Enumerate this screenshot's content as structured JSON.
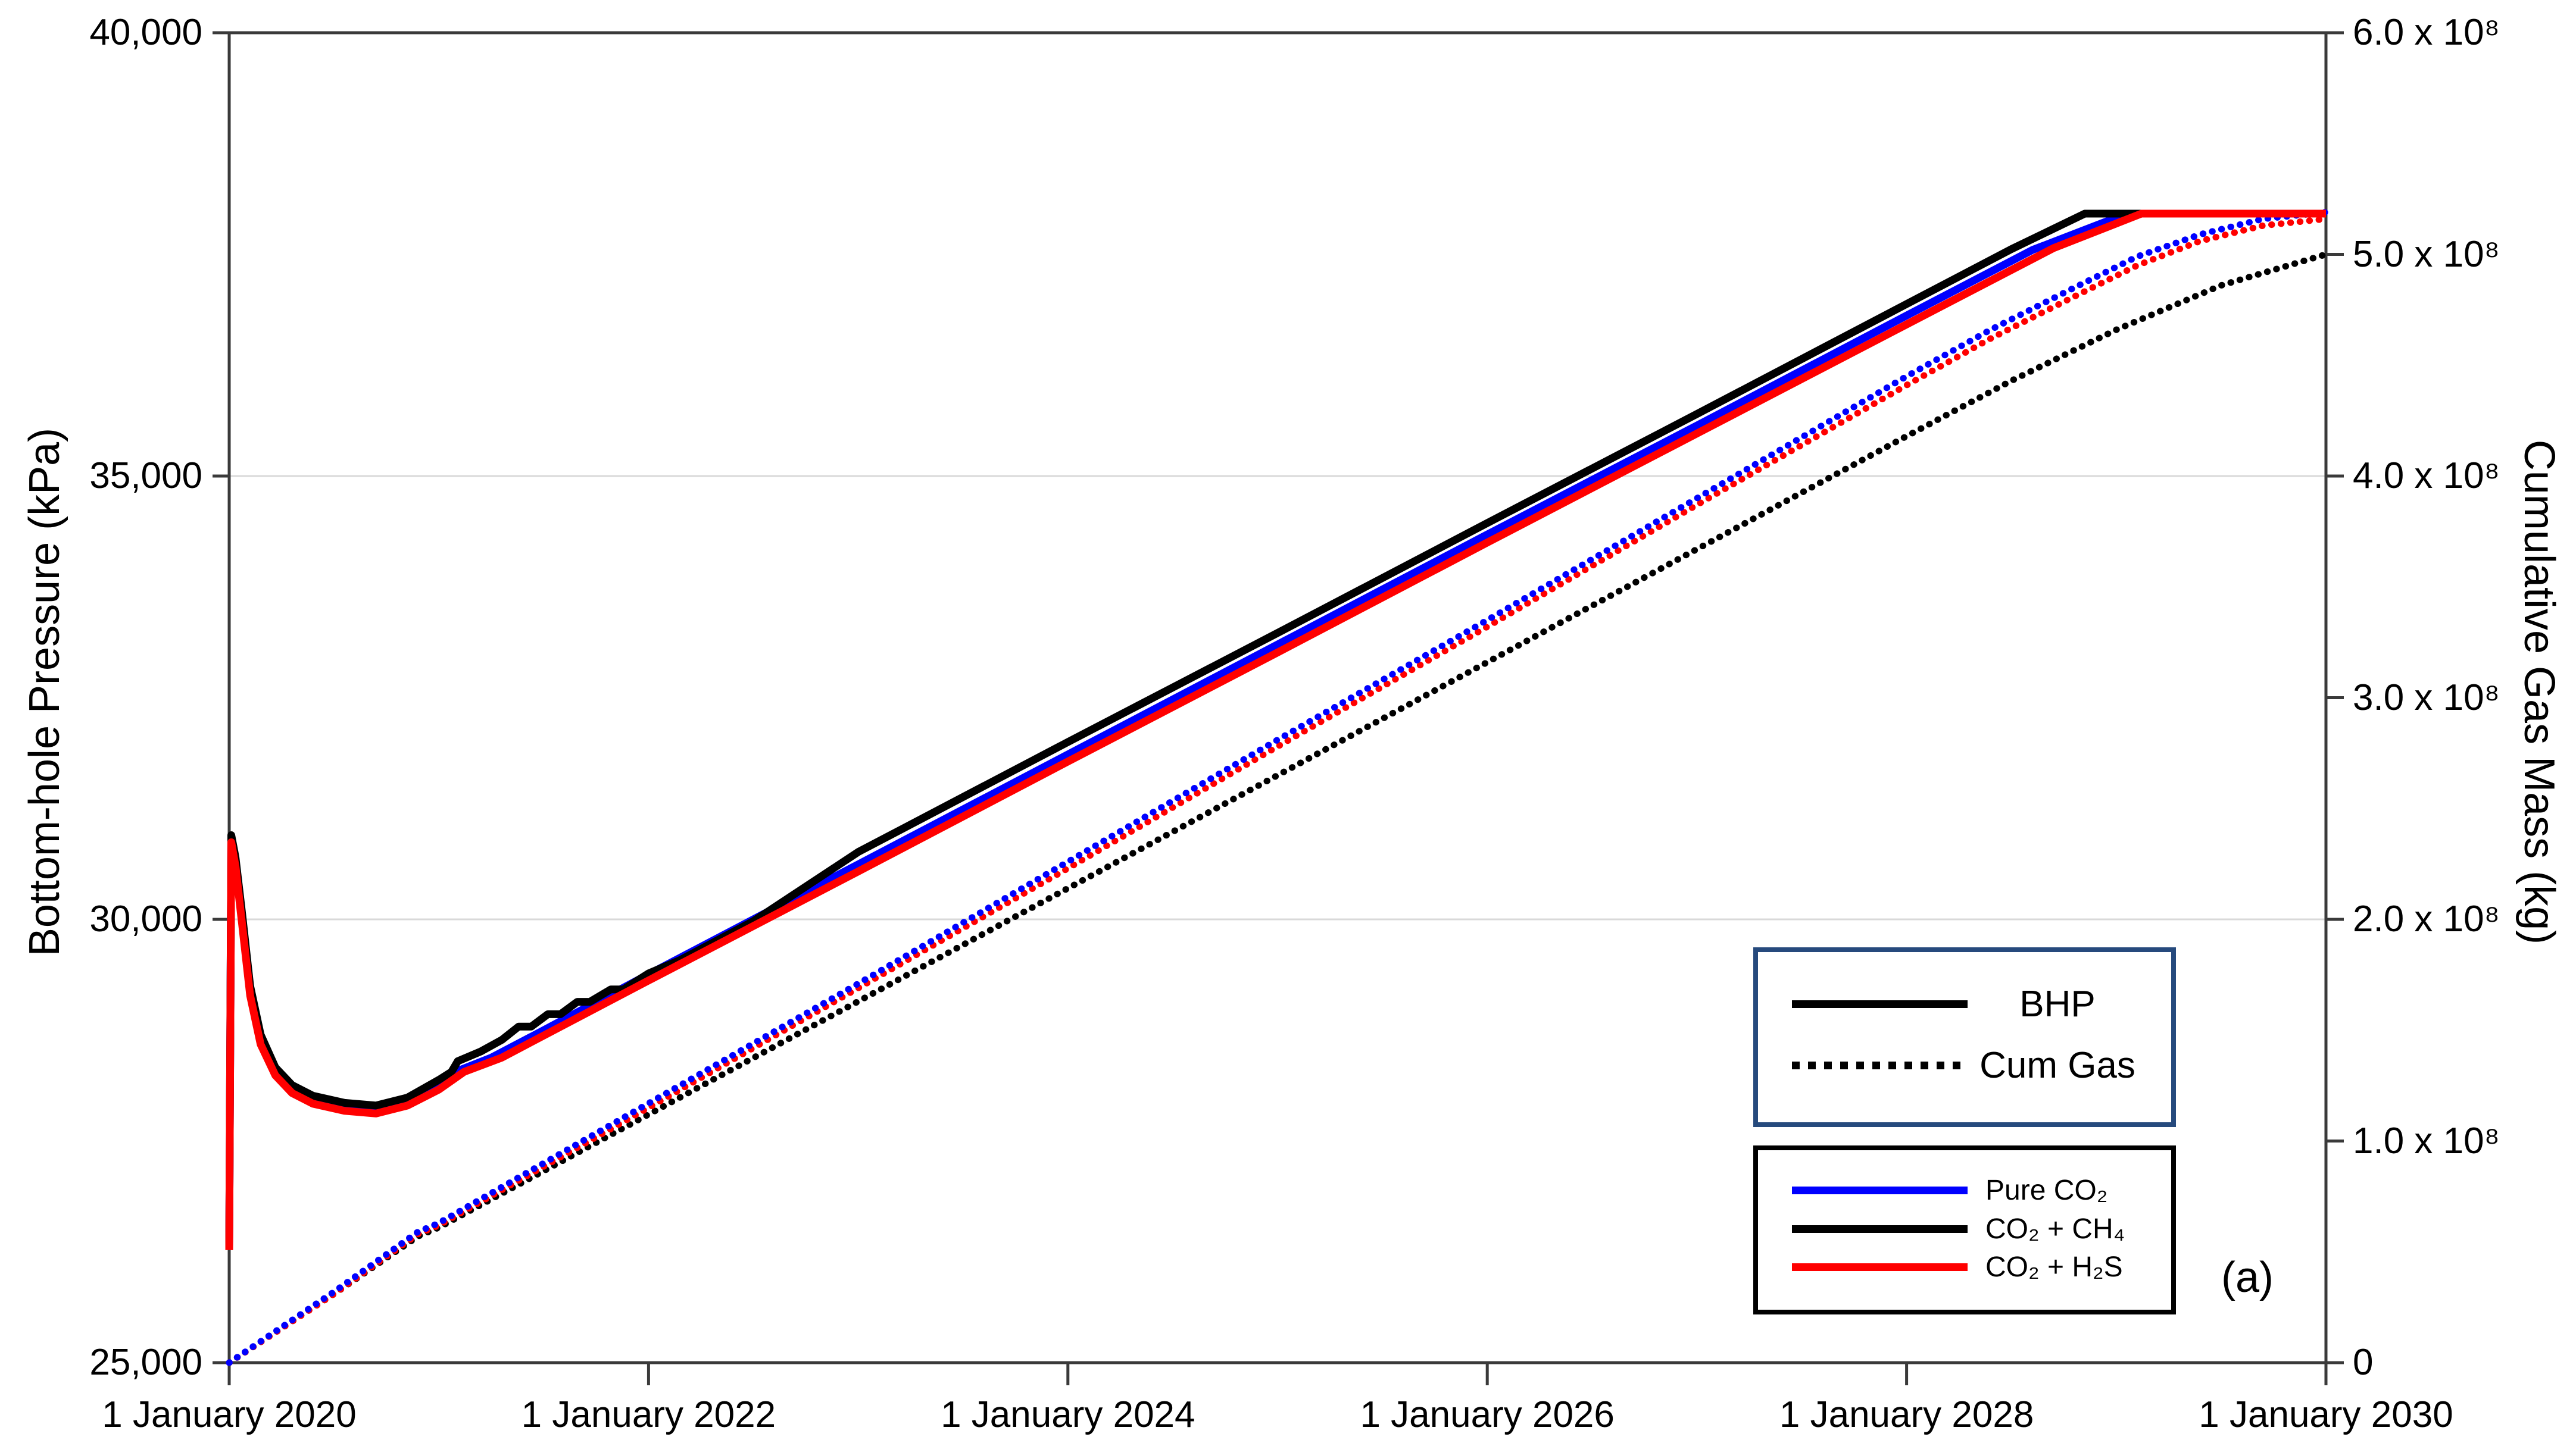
{
  "chart_data": {
    "type": "line",
    "title": "",
    "annotation": "(a)",
    "colors": {
      "pure_co2": "#0000ff",
      "co2_ch4": "#000000",
      "co2_h2s": "#ff0000",
      "grid": "#d9d9d9",
      "axis": "#3a3a3a",
      "legend_styles_border": "#264a7d",
      "legend_series_border": "#000000"
    },
    "x_axis": {
      "label": "",
      "range": [
        2020,
        2030
      ],
      "ticks": [
        {
          "v": 2020,
          "label": "1 January 2020"
        },
        {
          "v": 2022,
          "label": "1 January 2022"
        },
        {
          "v": 2024,
          "label": "1 January 2024"
        },
        {
          "v": 2026,
          "label": "1 January 2026"
        },
        {
          "v": 2028,
          "label": "1 January 2028"
        },
        {
          "v": 2030,
          "label": "1 January 2030"
        }
      ]
    },
    "y_left": {
      "label": "Bottom-hole Pressure (kPa)",
      "range": [
        25000,
        40000
      ],
      "gridlines": [
        30000,
        35000
      ],
      "ticks": [
        {
          "v": 25000,
          "label": "25,000"
        },
        {
          "v": 30000,
          "label": "30,000"
        },
        {
          "v": 35000,
          "label": "35,000"
        },
        {
          "v": 40000,
          "label": "40,000"
        }
      ]
    },
    "y_right": {
      "label": "Cumulative Gas Mass (kg)",
      "range": [
        0,
        600000000
      ],
      "ticks": [
        {
          "v": 0,
          "label": "0"
        },
        {
          "v": 100000000,
          "label": "1.0 x 10⁸"
        },
        {
          "v": 200000000,
          "label": "2.0 x 10⁸"
        },
        {
          "v": 300000000,
          "label": "3.0 x 10⁸"
        },
        {
          "v": 400000000,
          "label": "4.0 x 10⁸"
        },
        {
          "v": 500000000,
          "label": "5.0 x 10⁸"
        },
        {
          "v": 600000000,
          "label": "6.0 x 10⁸"
        }
      ]
    },
    "series": [
      {
        "id": "cumgas-co2-ch4",
        "name": "Cum Gas CO₂ + CH₄",
        "axis": "right",
        "style": "dotted",
        "color": "#000000",
        "points": [
          [
            2020,
            0
          ],
          [
            2020.5,
            31000000
          ],
          [
            2020.9,
            57000000
          ],
          [
            2021,
            61000000
          ],
          [
            2022,
            112000000
          ],
          [
            2023,
            163000000
          ],
          [
            2024,
            214000000
          ],
          [
            2025,
            265000000
          ],
          [
            2026,
            316000000
          ],
          [
            2027,
            367000000
          ],
          [
            2028,
            418000000
          ],
          [
            2028.5,
            443000000
          ],
          [
            2029,
            466000000
          ],
          [
            2029.5,
            486000000
          ],
          [
            2030,
            500000000
          ]
        ]
      },
      {
        "id": "cumgas-co2-h2s",
        "name": "Cum Gas CO₂ + H₂S",
        "axis": "right",
        "style": "dotted",
        "color": "#ff0000",
        "points": [
          [
            2020,
            0
          ],
          [
            2020.5,
            31000000
          ],
          [
            2020.9,
            58000000
          ],
          [
            2021,
            62000000
          ],
          [
            2022,
            115000000
          ],
          [
            2023,
            169000000
          ],
          [
            2024,
            223000000
          ],
          [
            2025,
            278000000
          ],
          [
            2026,
            332000000
          ],
          [
            2027,
            387000000
          ],
          [
            2028,
            441000000
          ],
          [
            2028.4,
            462000000
          ],
          [
            2028.8,
            481000000
          ],
          [
            2029.1,
            495000000
          ],
          [
            2029.4,
            506000000
          ],
          [
            2029.7,
            513000000
          ],
          [
            2030,
            516000000
          ]
        ]
      },
      {
        "id": "cumgas-pure-co2",
        "name": "Cum Gas Pure CO₂",
        "axis": "right",
        "style": "dotted",
        "color": "#0000ff",
        "points": [
          [
            2020,
            0
          ],
          [
            2020.5,
            32000000
          ],
          [
            2020.9,
            59000000
          ],
          [
            2021,
            63000000
          ],
          [
            2022,
            117000000
          ],
          [
            2023,
            171000000
          ],
          [
            2024,
            226000000
          ],
          [
            2025,
            281000000
          ],
          [
            2026,
            335000000
          ],
          [
            2027,
            390000000
          ],
          [
            2028,
            445000000
          ],
          [
            2028.4,
            466000000
          ],
          [
            2028.8,
            485000000
          ],
          [
            2029.1,
            499000000
          ],
          [
            2029.4,
            509000000
          ],
          [
            2029.7,
            516000000
          ],
          [
            2030,
            519000000
          ]
        ]
      },
      {
        "id": "bhp-pure-co2",
        "name": "BHP Pure CO₂",
        "axis": "left",
        "style": "solid",
        "color": "#0000ff",
        "points": [
          [
            2020,
            26290
          ],
          [
            2020.01,
            30900
          ],
          [
            2020.03,
            30640
          ],
          [
            2020.06,
            30030
          ],
          [
            2020.1,
            29190
          ],
          [
            2020.15,
            28640
          ],
          [
            2020.22,
            28280
          ],
          [
            2020.3,
            28080
          ],
          [
            2020.4,
            27960
          ],
          [
            2020.55,
            27880
          ],
          [
            2020.7,
            27850
          ],
          [
            2020.85,
            27940
          ],
          [
            2021,
            28130
          ],
          [
            2021.1,
            28300
          ],
          [
            2021.25,
            28440
          ],
          [
            2021.5,
            28750
          ],
          [
            2022,
            29380
          ],
          [
            2023,
            30620
          ],
          [
            2024,
            31860
          ],
          [
            2025,
            33100
          ],
          [
            2026,
            34340
          ],
          [
            2027,
            35570
          ],
          [
            2028,
            36810
          ],
          [
            2028.6,
            37550
          ],
          [
            2029.05,
            37960
          ],
          [
            2030,
            37960
          ]
        ]
      },
      {
        "id": "bhp-co2-ch4",
        "name": "BHP CO₂ + CH₄",
        "axis": "left",
        "style": "solid",
        "color": "#000000",
        "points": [
          [
            2020,
            26300
          ],
          [
            2020.01,
            30950
          ],
          [
            2020.03,
            30700
          ],
          [
            2020.06,
            30100
          ],
          [
            2020.1,
            29250
          ],
          [
            2020.15,
            28700
          ],
          [
            2020.22,
            28330
          ],
          [
            2020.3,
            28130
          ],
          [
            2020.4,
            28010
          ],
          [
            2020.55,
            27930
          ],
          [
            2020.7,
            27900
          ],
          [
            2020.85,
            27990
          ],
          [
            2021,
            28190
          ],
          [
            2021.06,
            28280
          ],
          [
            2021.09,
            28400
          ],
          [
            2021.2,
            28510
          ],
          [
            2021.3,
            28640
          ],
          [
            2021.38,
            28790
          ],
          [
            2021.44,
            28790
          ],
          [
            2021.52,
            28930
          ],
          [
            2021.58,
            28930
          ],
          [
            2021.66,
            29070
          ],
          [
            2021.72,
            29070
          ],
          [
            2021.82,
            29210
          ],
          [
            2021.88,
            29210
          ],
          [
            2022,
            29390
          ],
          [
            2022.15,
            29540
          ],
          [
            2022.5,
            29980
          ],
          [
            2023,
            30760
          ],
          [
            2024,
            32000
          ],
          [
            2025,
            33230
          ],
          [
            2026,
            34470
          ],
          [
            2027,
            35700
          ],
          [
            2028,
            36940
          ],
          [
            2028.5,
            37560
          ],
          [
            2028.85,
            37960
          ],
          [
            2030,
            37960
          ]
        ]
      },
      {
        "id": "bhp-co2-h2s",
        "name": "BHP CO₂ + H₂S",
        "axis": "left",
        "style": "solid",
        "color": "#ff0000",
        "points": [
          [
            2020,
            26270
          ],
          [
            2020.01,
            30870
          ],
          [
            2020.03,
            30600
          ],
          [
            2020.06,
            29980
          ],
          [
            2020.1,
            29140
          ],
          [
            2020.15,
            28590
          ],
          [
            2020.22,
            28240
          ],
          [
            2020.3,
            28040
          ],
          [
            2020.4,
            27920
          ],
          [
            2020.55,
            27840
          ],
          [
            2020.7,
            27810
          ],
          [
            2020.85,
            27900
          ],
          [
            2021,
            28080
          ],
          [
            2021.12,
            28280
          ],
          [
            2021.3,
            28440
          ],
          [
            2021.5,
            28690
          ],
          [
            2022,
            29310
          ],
          [
            2023,
            30540
          ],
          [
            2024,
            31780
          ],
          [
            2025,
            33010
          ],
          [
            2026,
            34250
          ],
          [
            2027,
            35480
          ],
          [
            2028,
            36710
          ],
          [
            2028.7,
            37570
          ],
          [
            2029.12,
            37960
          ],
          [
            2030,
            37960
          ]
        ]
      }
    ],
    "legend_styles": {
      "rows": [
        {
          "label": "BHP",
          "style": "solid"
        },
        {
          "label": "Cum Gas",
          "style": "dotted"
        }
      ]
    },
    "legend_series": {
      "rows": [
        {
          "label": "Pure CO₂",
          "color": "#0000ff"
        },
        {
          "label": "CO₂ + CH₄",
          "color": "#000000"
        },
        {
          "label": "CO₂ + H₂S",
          "color": "#ff0000"
        }
      ]
    }
  }
}
